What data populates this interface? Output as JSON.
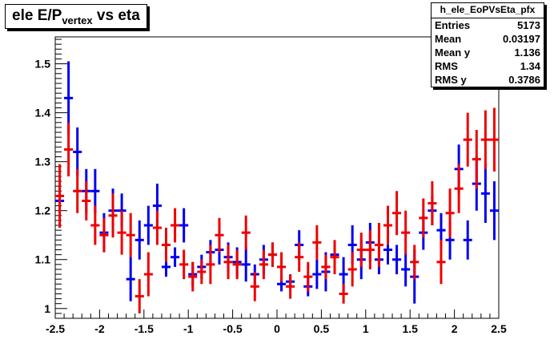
{
  "title": {
    "main": "ele E/P",
    "sub": "vertex",
    "tail": " vs eta"
  },
  "stats": {
    "name": "h_ele_EoPVsEta_pfx",
    "rows": [
      {
        "label": "Entries",
        "value": "5173"
      },
      {
        "label": "Mean",
        "value": "0.03197"
      },
      {
        "label": "Mean y",
        "value": "1.136"
      },
      {
        "label": "RMS",
        "value": "1.34"
      },
      {
        "label": "RMS y",
        "value": "0.3786"
      }
    ]
  },
  "chart_data": {
    "type": "scatter",
    "xlim": [
      -2.5,
      2.5
    ],
    "ylim": [
      0.98,
      1.555
    ],
    "xticks": [
      "-2.5",
      "-2",
      "-1.5",
      "-1",
      "-0.5",
      "0",
      "0.5",
      "1",
      "1.5",
      "2",
      "2.5"
    ],
    "yticks": [
      "1",
      "1.1",
      "1.2",
      "1.3",
      "1.4",
      "1.5"
    ],
    "bin_width": 0.1,
    "colors": {
      "blue": "#0000ee",
      "red": "#ee0000"
    },
    "series": [
      {
        "color": "#0000ee",
        "x": [
          -2.45,
          -2.35,
          -2.25,
          -2.15,
          -2.05,
          -1.95,
          -1.85,
          -1.75,
          -1.65,
          -1.55,
          -1.45,
          -1.35,
          -1.25,
          -1.15,
          -1.05,
          -0.95,
          -0.85,
          -0.75,
          -0.65,
          -0.55,
          -0.45,
          -0.35,
          -0.25,
          -0.15,
          -0.05,
          0.05,
          0.15,
          0.25,
          0.35,
          0.45,
          0.55,
          0.65,
          0.75,
          0.85,
          0.95,
          1.05,
          1.15,
          1.25,
          1.35,
          1.45,
          1.55,
          1.65,
          1.75,
          1.85,
          1.95,
          2.05,
          2.15,
          2.25,
          2.35,
          2.45
        ],
        "y": [
          1.22,
          1.43,
          1.32,
          1.24,
          1.24,
          1.155,
          1.2,
          1.2,
          1.06,
          1.14,
          1.17,
          1.21,
          1.085,
          1.105,
          1.17,
          1.07,
          1.085,
          1.115,
          1.12,
          1.105,
          1.095,
          1.09,
          1.07,
          1.1,
          1.11,
          1.05,
          1.055,
          1.13,
          1.045,
          1.07,
          1.075,
          1.11,
          1.07,
          1.13,
          1.1,
          1.135,
          1.1,
          1.12,
          1.1,
          1.08,
          1.065,
          1.155,
          1.2,
          1.16,
          1.14,
          1.285,
          1.14,
          1.255,
          1.235,
          1.2
        ],
        "err": [
          0.03,
          0.075,
          0.05,
          0.045,
          0.045,
          0.04,
          0.045,
          0.035,
          0.045,
          0.04,
          0.04,
          0.045,
          0.02,
          0.02,
          0.035,
          0.025,
          0.025,
          0.025,
          0.03,
          0.03,
          0.03,
          0.035,
          0.02,
          0.03,
          0.025,
          0.015,
          0.015,
          0.03,
          0.02,
          0.03,
          0.04,
          0.02,
          0.035,
          0.04,
          0.04,
          0.04,
          0.03,
          0.03,
          0.03,
          0.035,
          0.055,
          0.035,
          0.03,
          0.035,
          0.04,
          0.05,
          0.04,
          0.055,
          0.06,
          0.06
        ]
      },
      {
        "color": "#ee0000",
        "x": [
          -2.45,
          -2.35,
          -2.25,
          -2.15,
          -2.05,
          -1.95,
          -1.85,
          -1.75,
          -1.65,
          -1.55,
          -1.45,
          -1.35,
          -1.25,
          -1.15,
          -1.05,
          -0.95,
          -0.85,
          -0.75,
          -0.65,
          -0.55,
          -0.45,
          -0.35,
          -0.25,
          -0.15,
          -0.05,
          0.05,
          0.15,
          0.25,
          0.35,
          0.45,
          0.55,
          0.65,
          0.75,
          0.85,
          0.95,
          1.05,
          1.15,
          1.25,
          1.35,
          1.45,
          1.55,
          1.65,
          1.75,
          1.85,
          1.95,
          2.05,
          2.15,
          2.25,
          2.35,
          2.45
        ],
        "y": [
          1.23,
          1.325,
          1.24,
          1.22,
          1.17,
          1.15,
          1.19,
          1.155,
          1.15,
          1.025,
          1.07,
          1.165,
          1.13,
          1.17,
          1.09,
          1.065,
          1.075,
          1.09,
          1.15,
          1.095,
          1.09,
          1.155,
          1.045,
          1.09,
          1.11,
          1.085,
          1.045,
          1.105,
          1.065,
          1.135,
          1.085,
          1.105,
          1.03,
          1.08,
          1.12,
          1.12,
          1.13,
          1.17,
          1.195,
          1.155,
          1.095,
          1.185,
          1.215,
          1.095,
          1.195,
          1.245,
          1.345,
          1.305,
          1.345,
          1.345
        ],
        "err": [
          0.065,
          0.055,
          0.045,
          0.04,
          0.04,
          0.035,
          0.045,
          0.045,
          0.045,
          0.035,
          0.045,
          0.035,
          0.035,
          0.035,
          0.03,
          0.03,
          0.025,
          0.04,
          0.035,
          0.035,
          0.03,
          0.035,
          0.03,
          0.03,
          0.025,
          0.03,
          0.025,
          0.03,
          0.03,
          0.035,
          0.025,
          0.035,
          0.02,
          0.035,
          0.035,
          0.04,
          0.045,
          0.04,
          0.045,
          0.045,
          0.035,
          0.04,
          0.045,
          0.045,
          0.05,
          0.05,
          0.055,
          0.06,
          0.06,
          0.065
        ]
      }
    ]
  }
}
